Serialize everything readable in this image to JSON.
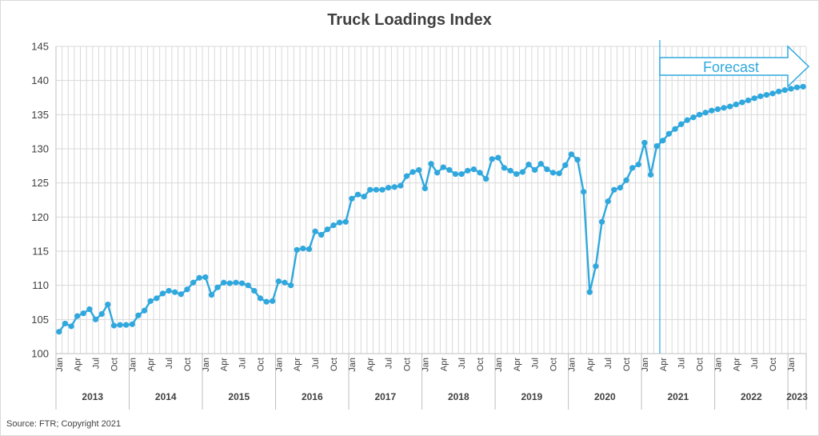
{
  "title": "Truck Loadings Index",
  "source": "Source: FTR; Copyright 2021",
  "colors": {
    "series": "#2fa8de",
    "grid": "#d9d9d9",
    "axis_text": "#404040",
    "forecast": "#2fa8de"
  },
  "chart_data": {
    "type": "line",
    "title": "Truck Loadings Index",
    "xlabel": "",
    "ylabel": "",
    "ylim": [
      100,
      145
    ],
    "y_ticks": [
      100,
      105,
      110,
      115,
      120,
      125,
      130,
      135,
      140,
      145
    ],
    "x_start": "2013-01",
    "month_tick_labels": [
      "Jan",
      "Apr",
      "Jul",
      "Oct"
    ],
    "year_labels": [
      "2013",
      "2014",
      "2015",
      "2016",
      "2017",
      "2018",
      "2019",
      "2020",
      "2021",
      "2022",
      "2023"
    ],
    "grid": true,
    "legend": "none",
    "annotations": [
      {
        "text": "Forecast",
        "type": "arrow",
        "starts_at": "2021-04"
      }
    ],
    "series": [
      {
        "values": [
          103.2,
          104.4,
          104.0,
          105.5,
          105.9,
          106.5,
          105.0,
          105.8,
          107.2,
          104.1,
          104.2,
          104.2,
          104.3,
          105.6,
          106.3,
          107.7,
          108.1,
          108.8,
          109.2,
          109.0,
          108.7,
          109.4,
          110.4,
          111.1,
          111.2,
          108.6,
          109.7,
          110.4,
          110.3,
          110.4,
          110.3,
          110.0,
          109.2,
          108.1,
          107.6,
          107.7,
          110.6,
          110.4,
          110.0,
          115.2,
          115.4,
          115.3,
          117.9,
          117.4,
          118.2,
          118.8,
          119.2,
          119.3,
          122.7,
          123.3,
          123.0,
          124.0,
          124.0,
          124.0,
          124.3,
          124.4,
          124.6,
          126.0,
          126.6,
          126.9,
          124.2,
          127.8,
          126.5,
          127.3,
          126.9,
          126.3,
          126.3,
          126.8,
          127.0,
          126.5,
          125.6,
          128.5,
          128.7,
          127.2,
          126.8,
          126.3,
          126.6,
          127.7,
          126.9,
          127.8,
          127.0,
          126.5,
          126.4,
          127.6,
          129.2,
          128.4,
          123.7,
          109.0,
          112.8,
          119.3,
          122.3,
          124.0,
          124.3,
          125.4,
          127.2,
          127.7,
          130.9,
          126.2,
          130.4,
          131.2,
          132.2,
          132.9,
          133.6,
          134.2,
          134.6,
          135.0,
          135.3,
          135.6,
          135.8,
          136.0,
          136.2,
          136.5,
          136.8,
          137.1,
          137.4,
          137.7,
          137.9,
          138.1,
          138.4,
          138.6,
          138.8,
          139.0,
          139.1
        ]
      }
    ]
  }
}
